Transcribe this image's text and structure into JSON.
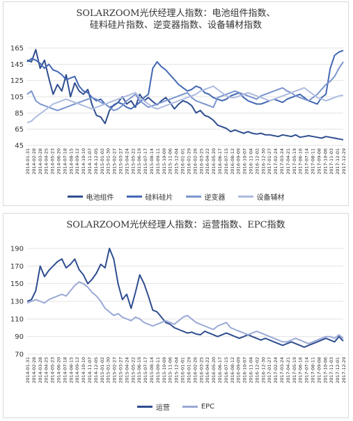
{
  "chart_data": [
    {
      "type": "line",
      "title": "SOLARZOOM光伏经理人指数：电池组件指数、\n硅料硅片指数、逆变器指数、设备辅材指数",
      "ylim": [
        45,
        165
      ],
      "yticks": [
        45,
        65,
        85,
        105,
        125,
        145,
        165
      ],
      "grid": true,
      "legend": "bottom",
      "x_range": [
        "2014-01-31",
        "2017-12-29"
      ],
      "x_ticks": [
        "2014-01-31",
        "2014-02-28",
        "2014-03-28",
        "2014-04-25",
        "2014-05-23",
        "2014-06-20",
        "2014-07-18",
        "2014-08-15",
        "2014-09-12",
        "2014-10-10",
        "2014-11-07",
        "2014-12-05",
        "2015-01-02",
        "2015-01-30",
        "2015-02-27",
        "2015-03-27",
        "2015-04-24",
        "2015-05-22",
        "2015-06-19",
        "2015-07-17",
        "2015-08-14",
        "2015-09-11",
        "2015-10-09",
        "2015-11-06",
        "2015-12-04",
        "2016-01-01",
        "2016-01-29",
        "2016-02-26",
        "2016-03-25",
        "2016-04-22",
        "2016-05-20",
        "2016-06-17",
        "2016-07-15",
        "2016-08-12",
        "2016-09-09",
        "2016-10-07",
        "2016-11-04",
        "2016-12-02",
        "2016-12-30",
        "2017-01-27",
        "2017-02-24",
        "2017-03-24",
        "2017-04-21",
        "2017-05-19",
        "2017-06-16",
        "2017-07-14",
        "2017-08-11",
        "2017-09-08",
        "2017-10-06",
        "2017-11-03",
        "2017-12-01",
        "2017-12-29"
      ],
      "series": [
        {
          "name": "电池组件",
          "color": "#2e4d8f",
          "values": [
            150,
            148,
            163,
            140,
            150,
            128,
            108,
            120,
            112,
            132,
            105,
            122,
            112,
            108,
            114,
            95,
            82,
            80,
            72,
            88,
            95,
            98,
            105,
            96,
            100,
            92,
            108,
            100,
            104,
            99,
            95,
            100,
            104,
            98,
            90,
            96,
            100,
            98,
            94,
            85,
            88,
            82,
            80,
            76,
            70,
            68,
            66,
            62,
            64,
            62,
            60,
            62,
            60,
            59,
            60,
            58,
            58,
            57,
            56,
            58,
            57,
            56,
            58,
            55,
            56,
            57,
            56,
            55,
            54,
            56,
            55,
            54,
            53,
            52
          ]
        },
        {
          "name": "硅料硅片",
          "color": "#4267b2",
          "values": [
            148,
            152,
            150,
            146,
            140,
            145,
            138,
            136,
            132,
            126,
            128,
            130,
            118,
            112,
            110,
            104,
            100,
            102,
            96,
            92,
            94,
            98,
            96,
            92,
            90,
            94,
            98,
            104,
            108,
            140,
            148,
            142,
            138,
            132,
            126,
            120,
            116,
            112,
            114,
            118,
            116,
            110,
            108,
            104,
            102,
            100,
            102,
            106,
            108,
            110,
            104,
            100,
            98,
            96,
            96,
            98,
            100,
            102,
            100,
            98,
            102,
            104,
            106,
            108,
            104,
            100,
            98,
            96,
            104,
            108,
            140,
            156,
            160,
            162
          ]
        },
        {
          "name": "逆变器",
          "color": "#7b95cf",
          "values": [
            108,
            112,
            100,
            96,
            94,
            92,
            90,
            88,
            90,
            92,
            94,
            96,
            98,
            100,
            102,
            104,
            102,
            98,
            96,
            92,
            88,
            90,
            94,
            100,
            104,
            108,
            100,
            96,
            92,
            94,
            96,
            98,
            100,
            102,
            104,
            106,
            108,
            110,
            104,
            100,
            98,
            96,
            94,
            92,
            104,
            106,
            108,
            110,
            112,
            110,
            108,
            106,
            104,
            102,
            106,
            108,
            110,
            112,
            114,
            116,
            112,
            110,
            106,
            104,
            102,
            100,
            104,
            108,
            114,
            120,
            124,
            130,
            140,
            148
          ]
        },
        {
          "name": "设备辅材",
          "color": "#aebbe0",
          "values": [
            73,
            75,
            80,
            84,
            88,
            92,
            96,
            98,
            100,
            102,
            100,
            98,
            96,
            94,
            92,
            90,
            92,
            94,
            96,
            98,
            100,
            102,
            104,
            106,
            108,
            110,
            104,
            100,
            96,
            92,
            90,
            92,
            94,
            96,
            98,
            100,
            102,
            104,
            106,
            108,
            112,
            114,
            116,
            118,
            114,
            110,
            106,
            104,
            104,
            106,
            108,
            110,
            108,
            106,
            104,
            102,
            100,
            102,
            104,
            106,
            108,
            110,
            112,
            114,
            116,
            112,
            108,
            104,
            102,
            100,
            102,
            104,
            106,
            107
          ]
        }
      ]
    },
    {
      "type": "line",
      "title": "SOLARZOOM光伏经理人指数：运营指数、EPC指数",
      "ylim": [
        70,
        190
      ],
      "yticks": [
        70,
        90,
        110,
        130,
        150,
        170,
        190
      ],
      "grid": true,
      "legend": "bottom",
      "x_range": [
        "2014-01-31",
        "2017-12-29"
      ],
      "x_ticks": [
        "2014-01-31",
        "2014-02-28",
        "2014-03-28",
        "2014-04-25",
        "2014-05-23",
        "2014-06-20",
        "2014-07-18",
        "2014-08-15",
        "2014-09-12",
        "2014-10-10",
        "2014-11-07",
        "2014-12-05",
        "2015-01-02",
        "2015-01-30",
        "2015-02-27",
        "2015-03-27",
        "2015-04-24",
        "2015-05-22",
        "2015-06-19",
        "2015-07-17",
        "2015-08-14",
        "2015-09-11",
        "2015-10-09",
        "2015-11-06",
        "2015-12-04",
        "2016-01-01",
        "2016-01-29",
        "2016-02-26",
        "2016-03-25",
        "2016-04-22",
        "2016-05-20",
        "2016-06-17",
        "2016-07-15",
        "2016-08-12",
        "2016-09-09",
        "2016-10-07",
        "2016-11-04",
        "2016-12-02",
        "2016-12-30",
        "2017-01-27",
        "2017-02-24",
        "2017-03-24",
        "2017-04-21",
        "2017-05-19",
        "2017-06-16",
        "2017-07-14",
        "2017-08-11",
        "2017-09-08",
        "2017-10-06",
        "2017-11-03",
        "2017-12-01",
        "2017-12-29"
      ],
      "series": [
        {
          "name": "运营",
          "color": "#2e4d8f",
          "values": [
            130,
            132,
            142,
            170,
            158,
            165,
            170,
            175,
            178,
            168,
            172,
            178,
            166,
            160,
            150,
            155,
            162,
            172,
            168,
            190,
            178,
            150,
            132,
            138,
            122,
            140,
            160,
            150,
            136,
            120,
            118,
            112,
            106,
            104,
            100,
            98,
            96,
            94,
            95,
            93,
            92,
            96,
            94,
            92,
            90,
            92,
            94,
            92,
            90,
            88,
            90,
            92,
            90,
            88,
            86,
            88,
            86,
            84,
            82,
            80,
            82,
            84,
            82,
            80,
            78,
            80,
            82,
            84,
            86,
            88,
            86,
            84,
            90,
            85
          ]
        },
        {
          "name": "EPC",
          "color": "#9aa9d6",
          "values": [
            128,
            130,
            132,
            130,
            128,
            132,
            134,
            136,
            138,
            136,
            142,
            148,
            152,
            150,
            146,
            140,
            136,
            130,
            122,
            118,
            114,
            116,
            112,
            110,
            108,
            112,
            110,
            106,
            104,
            102,
            104,
            106,
            108,
            106,
            104,
            108,
            112,
            114,
            110,
            106,
            104,
            102,
            100,
            98,
            102,
            104,
            106,
            100,
            98,
            96,
            94,
            92,
            94,
            96,
            94,
            92,
            90,
            88,
            86,
            84,
            84,
            86,
            88,
            86,
            84,
            82,
            84,
            86,
            88,
            90,
            90,
            88,
            92,
            88
          ]
        }
      ]
    }
  ]
}
